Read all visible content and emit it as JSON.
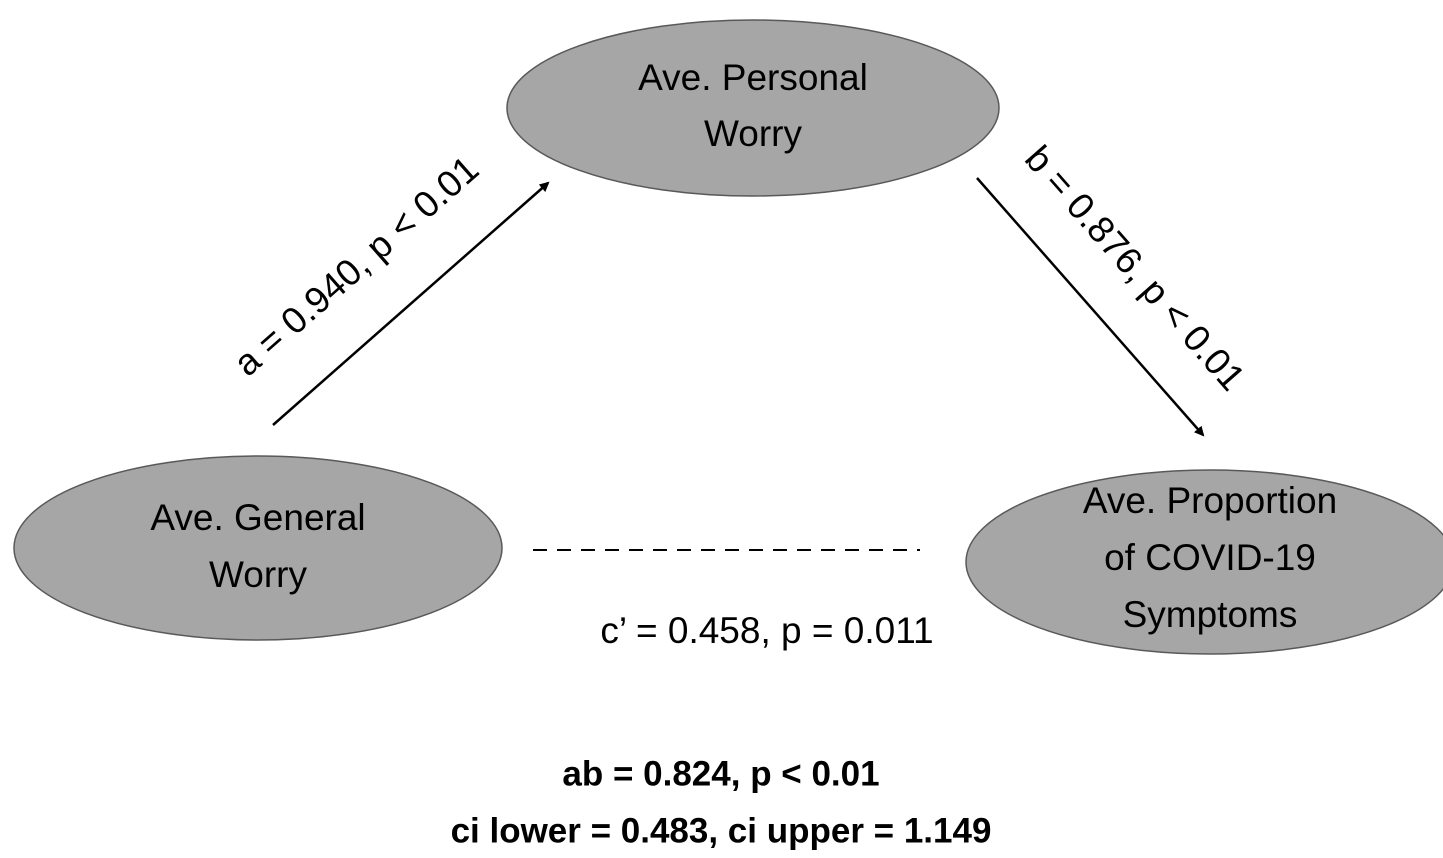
{
  "nodes": [
    {
      "lines": [
        "Ave. Personal",
        "Worry"
      ]
    },
    {
      "lines": [
        "Ave. General",
        "Worry"
      ]
    },
    {
      "lines": [
        "Ave. Proportion",
        "of COVID-19",
        "Symptoms"
      ]
    }
  ],
  "edges": [
    {
      "label": "a = 0.940, p < 0.01"
    },
    {
      "label": "b = 0.876, p < 0.01"
    },
    {
      "label": "c’ = 0.458, p = 0.011"
    }
  ],
  "summary": [
    "ab = 0.824, p < 0.01",
    "ci lower = 0.483, ci upper = 1.149"
  ]
}
